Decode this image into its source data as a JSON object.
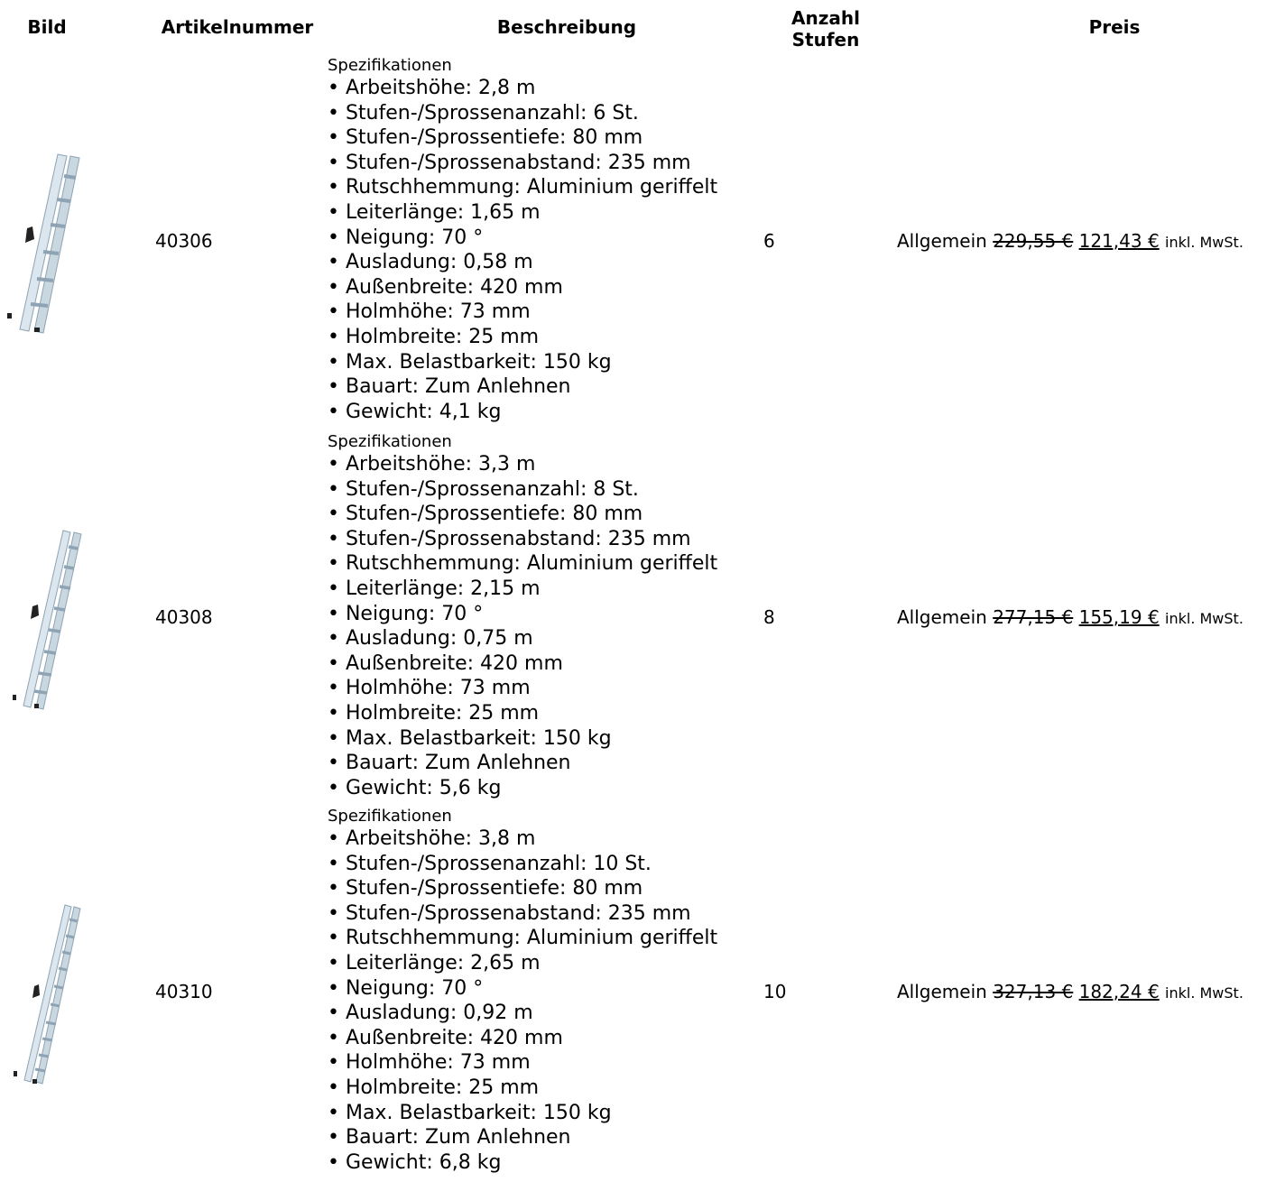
{
  "headers": {
    "bild": "Bild",
    "artikelnummer": "Artikelnummer",
    "beschreibung": "Beschreibung",
    "anzahl_stufen_1": "Anzahl",
    "anzahl_stufen_2": "Stufen",
    "preis": "Preis"
  },
  "rows": [
    {
      "artikelnummer": "40306",
      "spec_title": "Spezifikationen",
      "specs": [
        "• Arbeitshöhe: 2,8 m",
        "• Stufen-/Sprossenanzahl: 6 St.",
        "• Stufen-/Sprossentiefe: 80 mm",
        "• Stufen-/Sprossenabstand: 235 mm",
        "• Rutschhemmung: Aluminium geriffelt",
        "• Leiterlänge: 1,65 m",
        "• Neigung: 70 °",
        "• Ausladung: 0,58 m",
        "• Außenbreite: 420 mm",
        "• Holmhöhe: 73 mm",
        "• Holmbreite: 25 mm",
        "• Max. Belastbarkeit: 150 kg",
        "• Bauart: Zum Anlehnen",
        "• Gewicht: 4,1 kg"
      ],
      "stufen": "6",
      "price_group": "Allgemein",
      "old_price": "229,55 €",
      "new_price": "121,43 €",
      "tax_note": "inkl. MwSt."
    },
    {
      "artikelnummer": "40308",
      "spec_title": "Spezifikationen",
      "specs": [
        "• Arbeitshöhe: 3,3 m",
        "• Stufen-/Sprossenanzahl: 8 St.",
        "• Stufen-/Sprossentiefe: 80 mm",
        "• Stufen-/Sprossenabstand: 235 mm",
        "• Rutschhemmung: Aluminium geriffelt",
        "• Leiterlänge: 2,15 m",
        "• Neigung: 70 °",
        "• Ausladung: 0,75 m",
        "• Außenbreite: 420 mm",
        "• Holmhöhe: 73 mm",
        "• Holmbreite: 25 mm",
        "• Max. Belastbarkeit: 150 kg",
        "• Bauart: Zum Anlehnen",
        "• Gewicht: 5,6 kg"
      ],
      "stufen": "8",
      "price_group": "Allgemein",
      "old_price": "277,15 €",
      "new_price": "155,19 €",
      "tax_note": "inkl. MwSt."
    },
    {
      "artikelnummer": "40310",
      "spec_title": "Spezifikationen",
      "specs": [
        "• Arbeitshöhe: 3,8 m",
        "• Stufen-/Sprossenanzahl: 10 St.",
        "• Stufen-/Sprossentiefe: 80 mm",
        "• Stufen-/Sprossenabstand: 235 mm",
        "• Rutschhemmung: Aluminium geriffelt",
        "• Leiterlänge: 2,65 m",
        "• Neigung: 70 °",
        "• Ausladung: 0,92 m",
        "• Außenbreite: 420 mm",
        "• Holmhöhe: 73 mm",
        "• Holmbreite: 25 mm",
        "• Max. Belastbarkeit: 150 kg",
        "• Bauart: Zum Anlehnen",
        "• Gewicht: 6,8 kg"
      ],
      "stufen": "10",
      "price_group": "Allgemein",
      "old_price": "327,13 €",
      "new_price": "182,24 €",
      "tax_note": "inkl. MwSt."
    }
  ]
}
